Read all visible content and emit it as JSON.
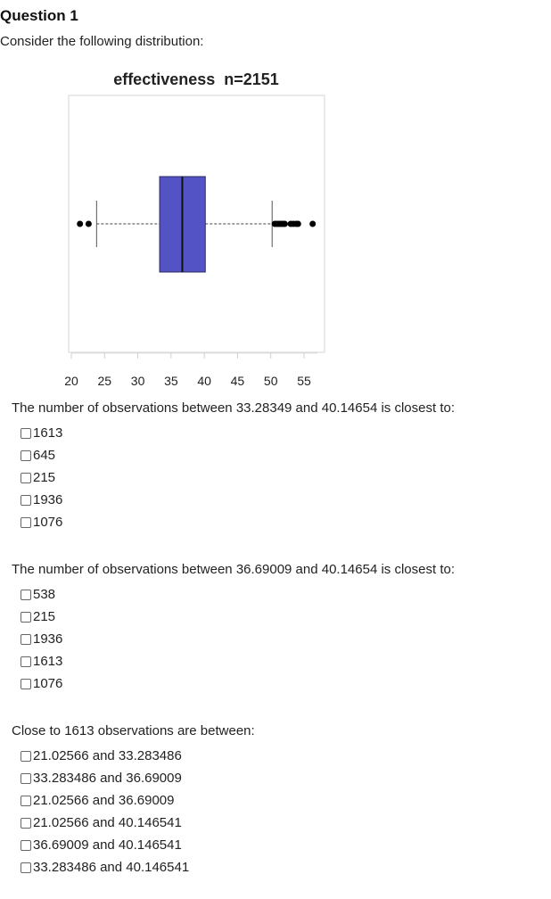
{
  "question": {
    "title": "Question 1",
    "intro": "Consider the following distribution:"
  },
  "chart_data": {
    "type": "boxplot",
    "title": "effectiveness  n=2151",
    "xlabel": "",
    "ylabel": "",
    "xlim": [
      20,
      57
    ],
    "ticks": [
      20,
      25,
      30,
      35,
      40,
      45,
      50,
      55
    ],
    "tick_labels": [
      "20",
      "25",
      "30",
      "35",
      "40",
      "45",
      "50",
      "55"
    ],
    "orientation": "horizontal",
    "box_color": "#5353c6",
    "whisker_low": 23.8,
    "q1": 33.28,
    "median": 36.69,
    "q3": 40.15,
    "whisker_high": 50.2,
    "outliers": [
      21.3,
      22.6,
      50.6,
      50.9,
      51.2,
      51.5,
      51.8,
      52.1,
      53.0,
      53.4,
      53.8,
      54.1,
      56.3
    ],
    "grid": false
  },
  "parts": [
    {
      "prompt": "The number of observations between 33.28349 and 40.14654 is closest to:",
      "options": [
        "1613",
        "645",
        "215",
        "1936",
        "1076"
      ]
    },
    {
      "prompt": "The number of observations between 36.69009 and 40.14654 is closest to:",
      "options": [
        "538",
        "215",
        "1936",
        "1613",
        "1076"
      ]
    },
    {
      "prompt": "Close to 1613 observations are between:",
      "options": [
        "21.02566 and 33.283486",
        "33.283486 and 36.69009",
        "21.02566 and 36.69009",
        "21.02566 and 40.146541",
        "36.69009 and 40.146541",
        "33.283486 and 40.146541"
      ]
    }
  ]
}
